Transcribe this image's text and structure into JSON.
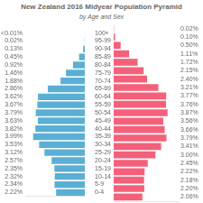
{
  "chart_data": {
    "type": "bar",
    "orientation": "horizontal",
    "title": "New Zealand 2016 Midyear Population Pyramid",
    "subtitle": "by Age and Sex",
    "categories": [
      "0-4",
      "5-9",
      "10-14",
      "15-19",
      "20-24",
      "25-29",
      "30-34",
      "35-39",
      "40-44",
      "45-49",
      "50-54",
      "55-59",
      "60-64",
      "65-69",
      "70-74",
      "75-79",
      "80-84",
      "85-89",
      "90-94",
      "95-99",
      "100+"
    ],
    "series": [
      {
        "color": "#5aafd4",
        "values": [
          2.22,
          2.34,
          2.32,
          2.35,
          2.57,
          3.12,
          3.53,
          3.99,
          3.82,
          3.63,
          3.79,
          3.67,
          3.62,
          2.86,
          1.88,
          1.46,
          0.92,
          0.45,
          0.13,
          0.02,
          0.01
        ],
        "value_labels": [
          "2.22%",
          "2.34%",
          "2.32%",
          "2.35%",
          "2.57%",
          "3.12%",
          "3.53%",
          "3.99%",
          "3.82%",
          "3.63%",
          "3.79%",
          "3.67%",
          "3.62%",
          "2.86%",
          "1.88%",
          "1.46%",
          "0.92%",
          "0.45%",
          "0.13%",
          "0.02%",
          "<0.01%"
        ]
      },
      {
        "color": "#f4607a",
        "values": [
          2.06,
          2.2,
          2.18,
          2.22,
          2.45,
          3.0,
          3.41,
          3.79,
          3.66,
          3.56,
          3.87,
          3.76,
          3.77,
          3.21,
          2.4,
          2.15,
          1.72,
          1.11,
          0.5,
          0.1,
          0.02
        ],
        "value_labels": [
          "2.06%",
          "2.20%",
          "2.18%",
          "2.22%",
          "2.45%",
          "3.00%",
          "3.41%",
          "3.79%",
          "3.66%",
          "3.56%",
          "3.87%",
          "3.76%",
          "3.77%",
          "3.21%",
          "2.40%",
          "2.15%",
          "1.72%",
          "1.11%",
          "0.50%",
          "0.10%",
          "0.02%"
        ]
      }
    ],
    "xlim": [
      0,
      4.6
    ],
    "grid": false,
    "data_labels": true,
    "tick_labels": "y"
  }
}
